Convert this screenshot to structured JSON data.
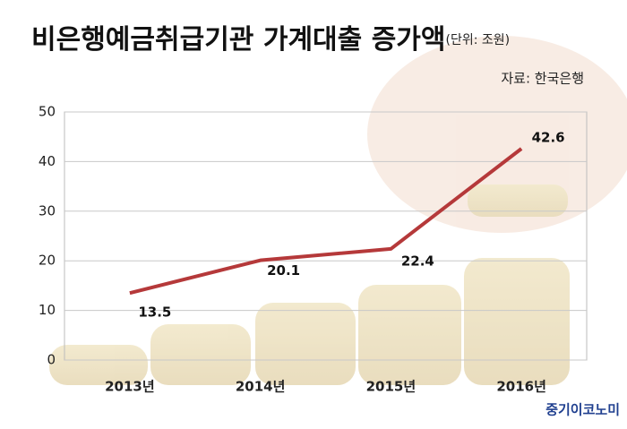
{
  "chart_data": {
    "type": "line",
    "title": "비은행예금취급기관 가계대출 증가액",
    "subtitle": "(단위: 조원)",
    "source": "자료: 한국은행",
    "watermark": "중기이코노미",
    "categories": [
      "2013년",
      "2014년",
      "2015년",
      "2016년"
    ],
    "values": [
      13.5,
      20.1,
      22.4,
      42.6
    ],
    "color": "#b5393a",
    "ylim": [
      0,
      50
    ],
    "yticks": [
      0,
      10,
      20,
      30,
      40,
      50
    ],
    "grid": true
  }
}
